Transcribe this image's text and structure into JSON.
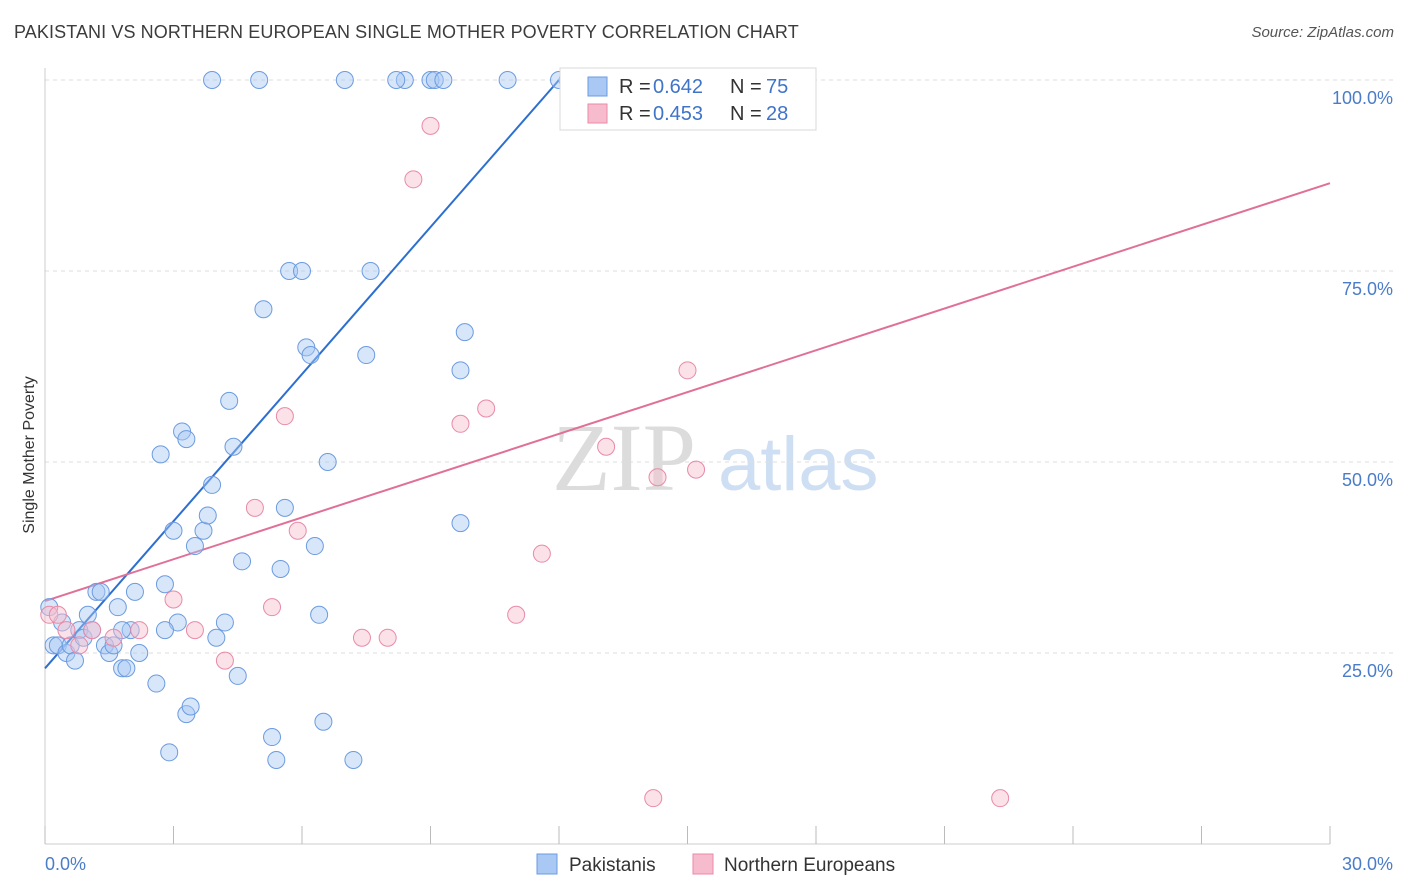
{
  "title": "PAKISTANI VS NORTHERN EUROPEAN SINGLE MOTHER POVERTY CORRELATION CHART",
  "source": "Source: ZipAtlas.com",
  "watermark": {
    "zip": "ZIP",
    "atlas": "atlas"
  },
  "colors": {
    "blue_fill": "#a9c8f3",
    "blue_stroke": "#6b9be0",
    "blue_line": "#2d6fd0",
    "pink_fill": "#f6bccd",
    "pink_stroke": "#e98aa8",
    "pink_line": "#e07098",
    "tick_text": "#4a7cc9",
    "grid": "#dddddd"
  },
  "legend": {
    "rows": [
      {
        "r_label": "R =",
        "r_value": "0.642",
        "n_label": "N =",
        "n_value": "75",
        "series": "blue"
      },
      {
        "r_label": "R =",
        "r_value": "0.453",
        "n_label": "N =",
        "n_value": "28",
        "series": "pink"
      }
    ]
  },
  "bottom_legend": [
    {
      "label": "Pakistanis",
      "series": "blue"
    },
    {
      "label": "Northern Europeans",
      "series": "pink"
    }
  ],
  "chart_data": {
    "type": "scatter",
    "xlabel": "",
    "ylabel": "Single Mother Poverty",
    "xlim": [
      0,
      30
    ],
    "ylim": [
      0,
      102
    ],
    "x_tick_labels": [
      "0.0%",
      "30.0%"
    ],
    "y_ticks": [
      25,
      50,
      75,
      100
    ],
    "y_tick_labels": [
      "25.0%",
      "50.0%",
      "75.0%",
      "100.0%"
    ],
    "grid": true,
    "legend_position": "top-center",
    "series": [
      {
        "name": "Pakistanis",
        "color": "blue",
        "trend": {
          "x0": 0,
          "y0": 23.0,
          "x1": 12.0,
          "y1": 100.0
        },
        "points": [
          [
            0.1,
            31
          ],
          [
            0.2,
            26
          ],
          [
            0.3,
            26
          ],
          [
            0.4,
            29
          ],
          [
            0.5,
            25
          ],
          [
            0.6,
            26
          ],
          [
            0.7,
            24
          ],
          [
            0.8,
            28
          ],
          [
            0.9,
            27
          ],
          [
            1.0,
            30
          ],
          [
            1.1,
            28
          ],
          [
            1.2,
            33
          ],
          [
            1.3,
            33
          ],
          [
            1.4,
            26
          ],
          [
            1.5,
            25
          ],
          [
            1.6,
            26
          ],
          [
            1.7,
            31
          ],
          [
            1.8,
            23
          ],
          [
            1.9,
            23
          ],
          [
            2.0,
            28
          ],
          [
            2.1,
            33
          ],
          [
            2.2,
            25
          ],
          [
            1.8,
            28
          ],
          [
            2.6,
            21
          ],
          [
            2.7,
            51
          ],
          [
            2.8,
            34
          ],
          [
            2.9,
            12
          ],
          [
            3.1,
            29
          ],
          [
            3.2,
            54
          ],
          [
            3.3,
            17
          ],
          [
            3.4,
            18
          ],
          [
            3.0,
            41
          ],
          [
            3.3,
            53
          ],
          [
            3.5,
            39
          ],
          [
            3.7,
            41
          ],
          [
            3.8,
            43
          ],
          [
            3.9,
            47
          ],
          [
            4.0,
            27
          ],
          [
            4.2,
            29
          ],
          [
            4.3,
            58
          ],
          [
            4.4,
            52
          ],
          [
            4.5,
            22
          ],
          [
            4.6,
            37
          ],
          [
            5.1,
            70
          ],
          [
            5.3,
            14
          ],
          [
            5.4,
            11
          ],
          [
            5.5,
            36
          ],
          [
            5.6,
            44
          ],
          [
            5.7,
            75
          ],
          [
            6.0,
            75
          ],
          [
            6.1,
            65
          ],
          [
            6.2,
            64
          ],
          [
            6.3,
            39
          ],
          [
            6.4,
            30
          ],
          [
            6.5,
            16
          ],
          [
            6.6,
            50
          ],
          [
            7.2,
            11
          ],
          [
            7.5,
            64
          ],
          [
            7.6,
            75
          ],
          [
            8.4,
            100
          ],
          [
            8.2,
            100
          ],
          [
            9.0,
            100
          ],
          [
            7.0,
            100
          ],
          [
            5.0,
            100
          ],
          [
            3.9,
            100
          ],
          [
            9.7,
            42
          ],
          [
            9.7,
            62
          ],
          [
            12.2,
            100
          ],
          [
            14.1,
            100
          ],
          [
            10.8,
            100
          ],
          [
            9.1,
            100
          ],
          [
            9.3,
            100
          ],
          [
            12.0,
            100
          ],
          [
            9.8,
            67
          ],
          [
            2.8,
            28
          ]
        ]
      },
      {
        "name": "Northern Europeans",
        "color": "pink",
        "trend": {
          "x0": 0,
          "y0": 31.8,
          "x1": 30,
          "y1": 86.5
        },
        "points": [
          [
            0.1,
            30
          ],
          [
            0.3,
            30
          ],
          [
            0.5,
            28
          ],
          [
            0.8,
            26
          ],
          [
            1.1,
            28
          ],
          [
            1.6,
            27
          ],
          [
            2.2,
            28
          ],
          [
            3.0,
            32
          ],
          [
            3.5,
            28
          ],
          [
            4.2,
            24
          ],
          [
            4.9,
            44
          ],
          [
            5.3,
            31
          ],
          [
            5.6,
            56
          ],
          [
            5.9,
            41
          ],
          [
            7.4,
            27
          ],
          [
            8.0,
            27
          ],
          [
            8.6,
            87
          ],
          [
            9.0,
            94
          ],
          [
            9.7,
            55
          ],
          [
            10.3,
            57
          ],
          [
            11.6,
            38
          ],
          [
            11.0,
            30
          ],
          [
            13.1,
            52
          ],
          [
            14.3,
            48
          ],
          [
            15.0,
            62
          ],
          [
            15.2,
            49
          ],
          [
            14.2,
            6
          ],
          [
            22.3,
            6
          ]
        ]
      }
    ]
  }
}
